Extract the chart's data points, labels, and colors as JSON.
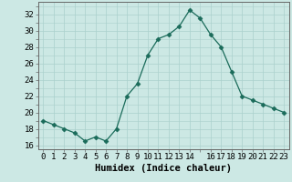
{
  "x": [
    0,
    1,
    2,
    3,
    4,
    5,
    6,
    7,
    8,
    9,
    10,
    11,
    12,
    13,
    14,
    15,
    16,
    17,
    18,
    19,
    20,
    21,
    22,
    23
  ],
  "y": [
    19.0,
    18.5,
    18.0,
    17.5,
    16.5,
    17.0,
    16.5,
    18.0,
    22.0,
    23.5,
    27.0,
    29.0,
    29.5,
    30.5,
    32.5,
    31.5,
    29.5,
    28.0,
    25.0,
    22.0,
    21.5,
    21.0,
    20.5,
    20.0
  ],
  "xlabel": "Humidex (Indice chaleur)",
  "ylim": [
    15.5,
    33.5
  ],
  "xlim": [
    -0.5,
    23.5
  ],
  "yticks": [
    16,
    18,
    20,
    22,
    24,
    26,
    28,
    30,
    32
  ],
  "xticks": [
    0,
    1,
    2,
    3,
    4,
    5,
    6,
    7,
    8,
    9,
    10,
    11,
    12,
    13,
    14,
    16,
    17,
    18,
    19,
    20,
    21,
    22,
    23
  ],
  "xtick_labels": [
    "0",
    "1",
    "2",
    "3",
    "4",
    "5",
    "6",
    "7",
    "8",
    "9",
    "10",
    "11",
    "12",
    "13",
    "14",
    "16",
    "17",
    "18",
    "19",
    "20",
    "21",
    "22",
    "23"
  ],
  "line_color": "#1a6b5a",
  "marker": "D",
  "marker_size": 2.5,
  "bg_color": "#cce8e4",
  "grid_color": "#aad0cc",
  "fig_bg": "#cce8e4",
  "xlabel_fontsize": 7.5,
  "tick_fontsize": 6.5
}
